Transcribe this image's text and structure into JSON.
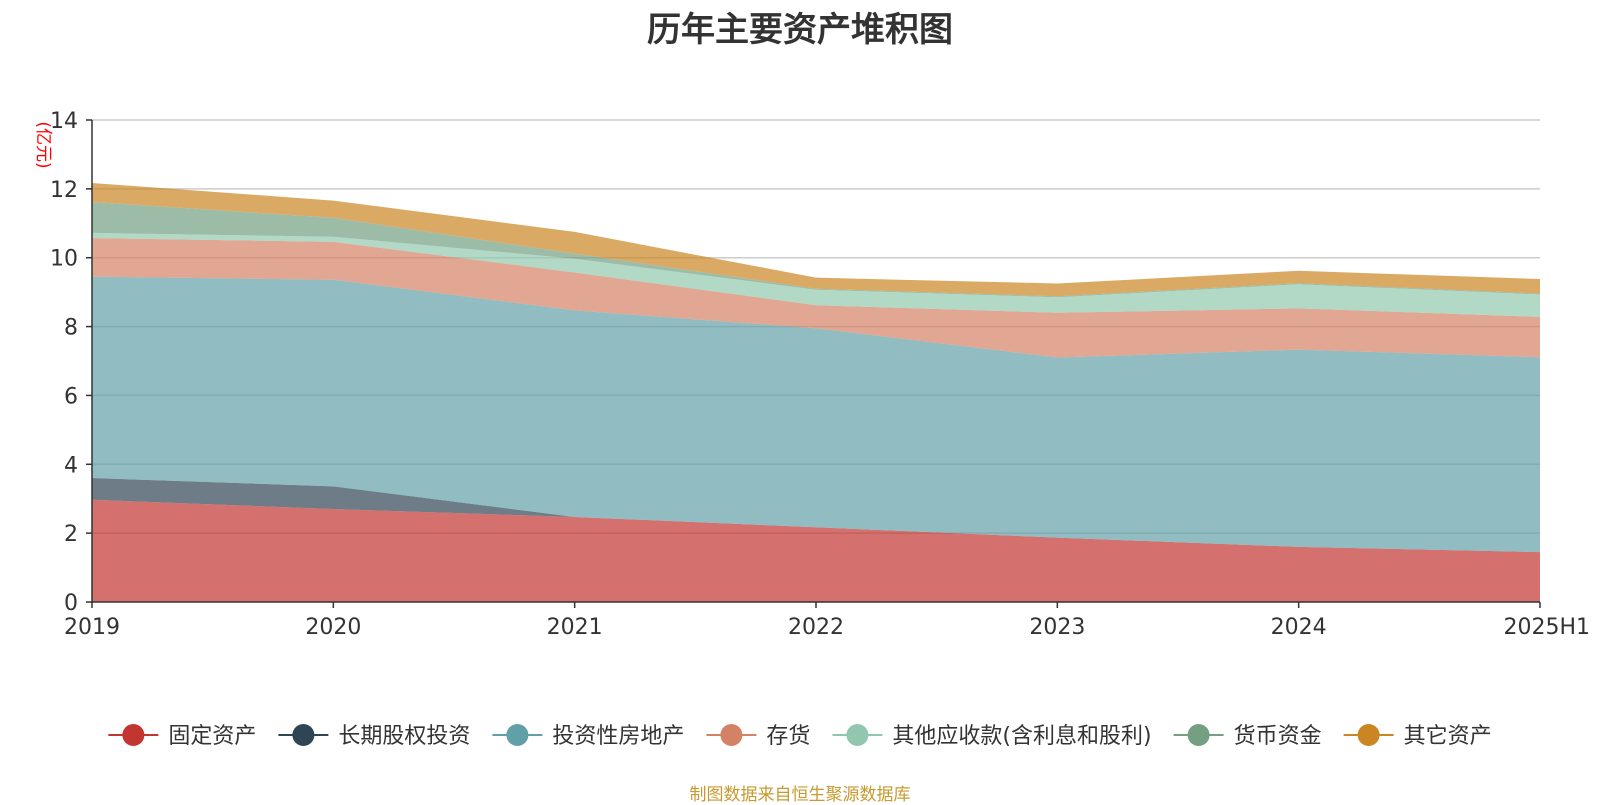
{
  "chart_data": {
    "type": "area",
    "title": "历年主要资产堆积图",
    "ylabel": "(亿元)",
    "xlabel": "",
    "ylim": [
      0,
      14
    ],
    "yticks": [
      0,
      2,
      4,
      6,
      8,
      10,
      12,
      14
    ],
    "categories": [
      "2019",
      "2020",
      "2021",
      "2022",
      "2023",
      "2024",
      "2025H1"
    ],
    "stacked": true,
    "grid": true,
    "legend_position": "bottom",
    "series": [
      {
        "name": "固定资产",
        "color": "#c23531",
        "values": [
          2.97,
          2.7,
          2.47,
          2.17,
          1.87,
          1.6,
          1.45
        ]
      },
      {
        "name": "长期股权投资",
        "color": "#2f4554",
        "values": [
          0.63,
          0.66,
          0.0,
          0.0,
          0.0,
          0.0,
          0.0
        ]
      },
      {
        "name": "投资性房地产",
        "color": "#61a0a8",
        "values": [
          5.85,
          6.0,
          6.0,
          5.78,
          5.23,
          5.73,
          5.66
        ]
      },
      {
        "name": "存货",
        "color": "#d48265",
        "values": [
          1.12,
          1.1,
          1.1,
          0.67,
          1.3,
          1.2,
          1.17
        ]
      },
      {
        "name": "其他应收款(含利息和股利)",
        "color": "#91c7ae",
        "values": [
          0.15,
          0.15,
          0.4,
          0.45,
          0.45,
          0.7,
          0.65
        ]
      },
      {
        "name": "货币资金",
        "color": "#749f83",
        "values": [
          0.9,
          0.55,
          0.15,
          0.03,
          0.03,
          0.03,
          0.03
        ]
      },
      {
        "name": "其它资产",
        "color": "#ca8622",
        "values": [
          0.55,
          0.5,
          0.63,
          0.32,
          0.37,
          0.36,
          0.42
        ]
      }
    ]
  },
  "source_note": "制图数据来自恒生聚源数据库"
}
